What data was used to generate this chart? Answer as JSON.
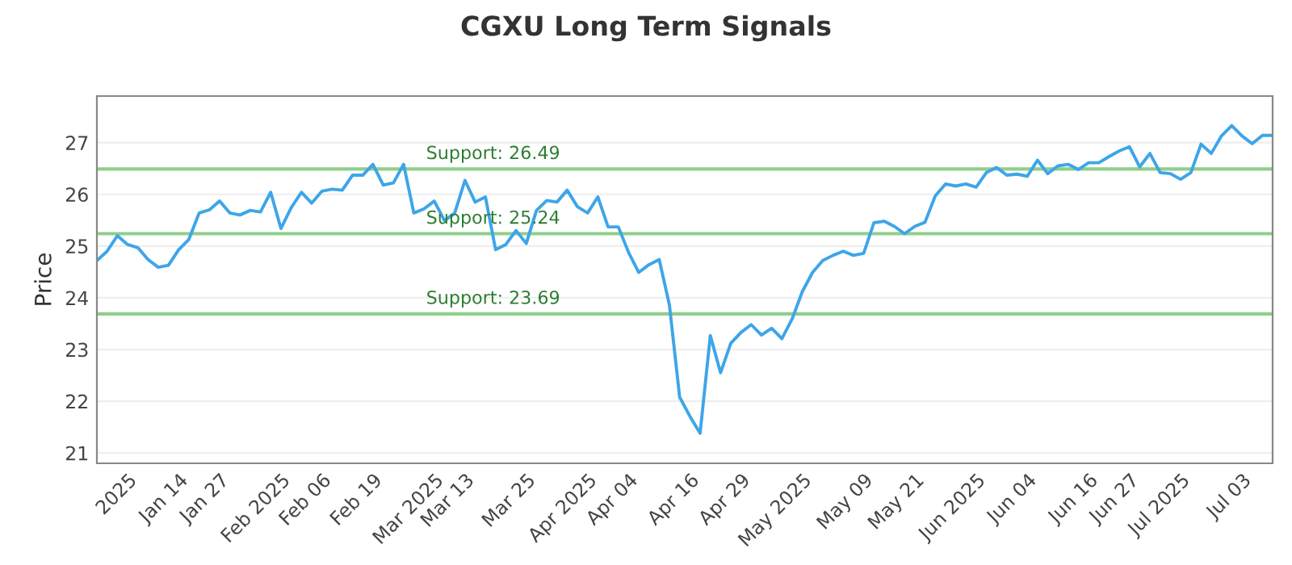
{
  "chart_data": {
    "type": "line",
    "title": "CGXU Long Term Signals",
    "ylabel": "Price",
    "ylim": [
      20.8,
      27.9
    ],
    "yticks": [
      21,
      22,
      23,
      24,
      25,
      26,
      27
    ],
    "categories": [
      null,
      null,
      null,
      "2025",
      null,
      null,
      null,
      null,
      "Jan 14",
      null,
      null,
      null,
      "Jan 27",
      null,
      null,
      null,
      null,
      null,
      "Feb 2025",
      null,
      null,
      null,
      "Feb 06",
      null,
      null,
      null,
      null,
      "Feb 19",
      null,
      null,
      null,
      null,
      null,
      "Mar 2025",
      null,
      null,
      "Mar 13",
      null,
      null,
      null,
      null,
      null,
      "Mar 25",
      null,
      null,
      null,
      null,
      null,
      "Apr 2025",
      null,
      null,
      null,
      "Apr 04",
      null,
      null,
      null,
      null,
      null,
      "Apr 16",
      null,
      null,
      null,
      null,
      "Apr 29",
      null,
      null,
      null,
      null,
      null,
      "May 2025",
      null,
      null,
      null,
      null,
      null,
      "May 09",
      null,
      null,
      null,
      null,
      "May 21",
      null,
      null,
      null,
      null,
      null,
      "Jun 2025",
      null,
      null,
      null,
      null,
      "Jun 04",
      null,
      null,
      null,
      null,
      null,
      "Jun 16",
      null,
      null,
      null,
      "Jun 27",
      null,
      null,
      null,
      null,
      "Jul 2025",
      null,
      null,
      null,
      null,
      null,
      "Jul 03",
      null,
      null,
      null
    ],
    "grid": "y",
    "marker": "none",
    "line_style": "solid",
    "series": [
      {
        "color": "#3ea5e8",
        "values": [
          24.72,
          24.9,
          25.2,
          25.03,
          24.97,
          24.74,
          24.59,
          24.63,
          24.93,
          25.13,
          25.64,
          25.7,
          25.87,
          25.64,
          25.6,
          25.69,
          25.66,
          26.04,
          25.34,
          25.74,
          26.04,
          25.83,
          26.06,
          26.1,
          26.08,
          26.37,
          26.37,
          26.58,
          26.18,
          26.22,
          26.58,
          25.64,
          25.72,
          25.87,
          25.49,
          25.64,
          26.27,
          25.85,
          25.95,
          24.93,
          25.03,
          25.3,
          25.05,
          25.69,
          25.88,
          25.85,
          26.08,
          25.76,
          25.64,
          25.95,
          25.37,
          25.37,
          24.88,
          24.49,
          24.64,
          24.74,
          23.86,
          22.08,
          21.71,
          21.38,
          23.27,
          22.55,
          23.12,
          23.33,
          23.48,
          23.28,
          23.41,
          23.21,
          23.59,
          24.12,
          24.49,
          24.72,
          24.82,
          24.9,
          24.82,
          24.86,
          25.45,
          25.48,
          25.38,
          25.24,
          25.38,
          25.46,
          25.97,
          26.2,
          26.16,
          26.2,
          26.14,
          26.42,
          26.52,
          26.37,
          26.39,
          26.35,
          26.66,
          26.4,
          26.55,
          26.58,
          26.48,
          26.61,
          26.61,
          26.73,
          26.84,
          26.92,
          26.53,
          26.79,
          26.42,
          26.4,
          26.29,
          26.42,
          26.97,
          26.79,
          27.13,
          27.33,
          27.13,
          26.98,
          27.14,
          27.14
        ]
      }
    ],
    "ref_lines": [
      {
        "axis": "y",
        "value": 26.49,
        "label": "Support: 26.49",
        "color": "#8fcf8a"
      },
      {
        "axis": "y",
        "value": 25.24,
        "label": "Support: 25.24",
        "color": "#8fcf8a"
      },
      {
        "axis": "y",
        "value": 23.69,
        "label": "Support: 23.69",
        "color": "#8fcf8a"
      }
    ]
  }
}
